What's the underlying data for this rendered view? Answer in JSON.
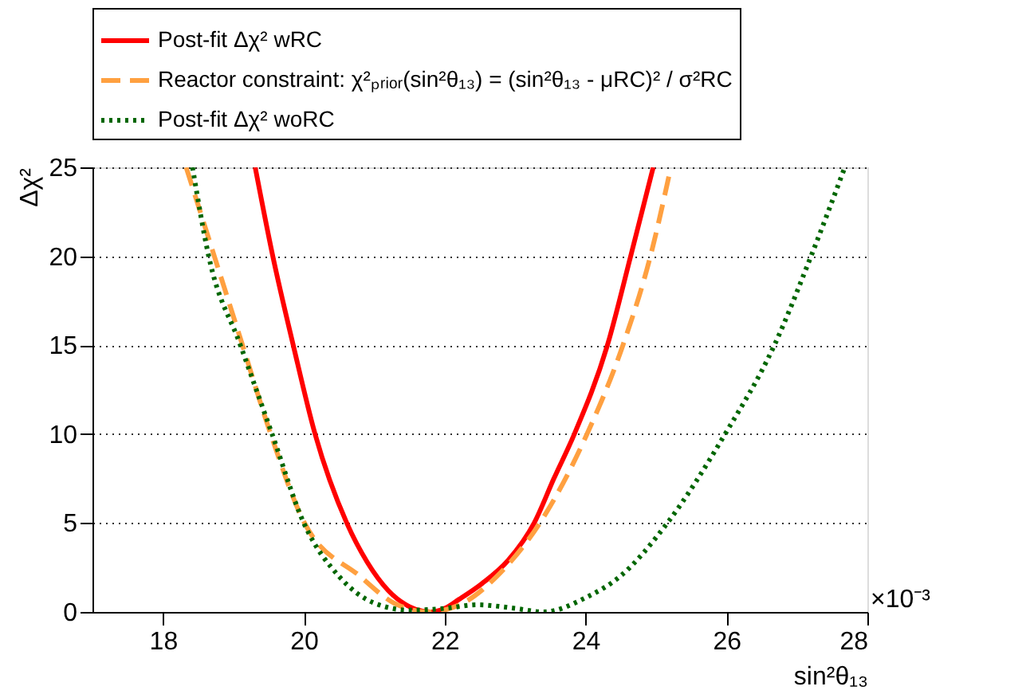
{
  "chart_data": {
    "type": "line",
    "xlabel": "sin²θ₁₃",
    "ylabel": "Δχ²",
    "xlim": [
      17,
      28
    ],
    "xticks": [
      18,
      20,
      22,
      24,
      26,
      28
    ],
    "ylim": [
      0,
      25
    ],
    "yticks": [
      0,
      5,
      10,
      15,
      20,
      25
    ],
    "grid": "y",
    "legend": "top",
    "marker": "none",
    "annotations": [
      "×10⁻³"
    ],
    "series": [
      {
        "name": "Post-fit Δχ² wRC",
        "color": "#ff0000",
        "line_style": "solid",
        "x": [
          19.31,
          19.56,
          19.85,
          20.16,
          20.61,
          20.9,
          21.2,
          21.5,
          21.8,
          22.0,
          22.2,
          22.53,
          22.9,
          23.27,
          23.55,
          23.84,
          24.31,
          24.64,
          24.96
        ],
        "values": [
          25,
          20,
          15,
          10,
          5,
          2.8,
          1.2,
          0.3,
          0,
          0.2,
          0.7,
          1.6,
          2.9,
          5,
          7.5,
          10,
          15,
          20,
          25
        ]
      },
      {
        "name": "Reactor constraint: χ²ₚᵣᵢₒᵣ(sin²θ₁₃) = (sin²θ₁₃ - μRC)² / σ²RC",
        "color": "#ffa040",
        "line_style": "dashed",
        "x": [
          18.33,
          18.73,
          19.13,
          19.53,
          20.01,
          20.8,
          21.28,
          21.77,
          22.26,
          22.74,
          23.35,
          24.02,
          24.53,
          24.92,
          25.21
        ],
        "values": [
          25,
          20,
          15,
          10,
          5,
          2,
          0.5,
          0,
          0.5,
          2,
          5,
          10,
          15,
          20,
          25
        ]
      },
      {
        "name": "Post-fit Δχ² woRC",
        "color": "#006600",
        "line_style": "dotted",
        "x": [
          18.42,
          18.65,
          19.1,
          19.55,
          20.0,
          20.5,
          21.0,
          21.5,
          22.0,
          22.46,
          23.0,
          23.4,
          24.0,
          24.49,
          25.16,
          25.98,
          26.68,
          27.2,
          27.68
        ],
        "values": [
          25,
          20,
          15,
          10,
          5,
          2,
          0.5,
          0.1,
          0.2,
          0.4,
          0.2,
          0,
          0.8,
          2,
          5,
          10,
          15,
          20,
          25
        ]
      }
    ]
  }
}
